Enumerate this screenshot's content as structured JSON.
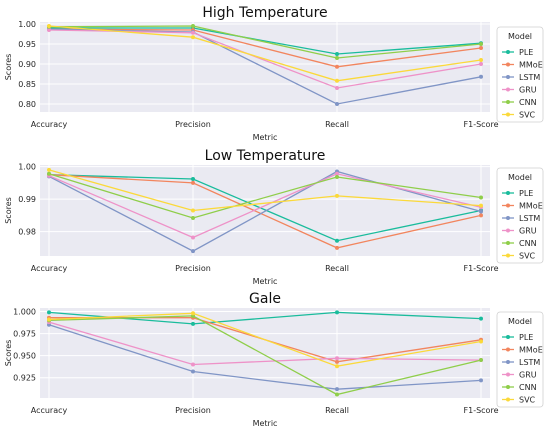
{
  "chart_data": [
    {
      "type": "line",
      "title": "High Temperature",
      "xlabel": "Metric",
      "ylabel": "Scores",
      "categories": [
        "Accuracy",
        "Precision",
        "Recall",
        "F1-Score"
      ],
      "ylim": [
        0.78,
        1.005
      ],
      "yticks": [
        0.8,
        0.85,
        0.9,
        0.95,
        1.0
      ],
      "ytick_labels": [
        "0.80",
        "0.85",
        "0.90",
        "0.95",
        "1.00"
      ],
      "grid": true,
      "legend_title": "Model",
      "legend_position": "right",
      "series": [
        {
          "name": "PLE",
          "values": [
            0.99,
            0.99,
            0.925,
            0.952
          ]
        },
        {
          "name": "MMoE",
          "values": [
            0.987,
            0.985,
            0.893,
            0.94
          ]
        },
        {
          "name": "LSTM",
          "values": [
            0.987,
            0.98,
            0.8,
            0.868
          ]
        },
        {
          "name": "GRU",
          "values": [
            0.985,
            0.978,
            0.84,
            0.9
          ]
        },
        {
          "name": "CNN",
          "values": [
            0.993,
            0.995,
            0.915,
            0.95
          ]
        },
        {
          "name": "SVC",
          "values": [
            0.995,
            0.967,
            0.858,
            0.91
          ]
        }
      ]
    },
    {
      "type": "line",
      "title": "Low Temperature",
      "xlabel": "Metric",
      "ylabel": "Scores",
      "categories": [
        "Accuracy",
        "Precision",
        "Recall",
        "F1-Score"
      ],
      "ylim": [
        0.9725,
        1.0005
      ],
      "yticks": [
        0.98,
        0.99,
        1.0
      ],
      "ytick_labels": [
        "0.98",
        "0.99",
        "1.00"
      ],
      "grid": true,
      "legend_title": "Model",
      "legend_position": "right",
      "series": [
        {
          "name": "PLE",
          "values": [
            0.9975,
            0.9962,
            0.9772,
            0.9865
          ]
        },
        {
          "name": "MMoE",
          "values": [
            0.9975,
            0.995,
            0.975,
            0.985
          ]
        },
        {
          "name": "LSTM",
          "values": [
            0.997,
            0.974,
            0.9985,
            0.9862
          ]
        },
        {
          "name": "GRU",
          "values": [
            0.9972,
            0.9782,
            0.9978,
            0.9875
          ]
        },
        {
          "name": "CNN",
          "values": [
            0.9978,
            0.9842,
            0.9968,
            0.9905
          ]
        },
        {
          "name": "SVC",
          "values": [
            0.999,
            0.9865,
            0.991,
            0.988
          ]
        }
      ]
    },
    {
      "type": "line",
      "title": "Gale",
      "xlabel": "Metric",
      "ylabel": "Scores",
      "categories": [
        "Accuracy",
        "Precision",
        "Recall",
        "F1-Score"
      ],
      "ylim": [
        0.902,
        1.004
      ],
      "yticks": [
        0.925,
        0.95,
        0.975,
        1.0
      ],
      "ytick_labels": [
        "0.925",
        "0.950",
        "0.975",
        "1.000"
      ],
      "grid": true,
      "legend_title": "Model",
      "legend_position": "right",
      "series": [
        {
          "name": "PLE",
          "values": [
            0.999,
            0.986,
            0.999,
            0.992
          ]
        },
        {
          "name": "MMoE",
          "values": [
            0.993,
            0.993,
            0.943,
            0.968
          ]
        },
        {
          "name": "LSTM",
          "values": [
            0.985,
            0.932,
            0.912,
            0.922
          ]
        },
        {
          "name": "GRU",
          "values": [
            0.988,
            0.94,
            0.947,
            0.945
          ]
        },
        {
          "name": "CNN",
          "values": [
            0.99,
            0.995,
            0.906,
            0.945
          ]
        },
        {
          "name": "SVC",
          "values": [
            0.991,
            0.998,
            0.938,
            0.966
          ]
        }
      ]
    }
  ],
  "colors": {
    "PLE": "#1abc9c",
    "MMoE": "#f2855e",
    "LSTM": "#8095c6",
    "GRU": "#ee92c8",
    "CNN": "#8fce4a",
    "SVC": "#fbd93a",
    "plot_background": "#eaeaf2",
    "grid": "#ffffff",
    "text": "#262626"
  }
}
